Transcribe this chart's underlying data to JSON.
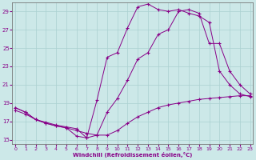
{
  "xlabel": "Windchill (Refroidissement éolien,°C)",
  "xlim": [
    0,
    23
  ],
  "ylim": [
    14.5,
    30
  ],
  "xticks": [
    0,
    1,
    2,
    3,
    4,
    5,
    6,
    7,
    8,
    9,
    10,
    11,
    12,
    13,
    14,
    15,
    16,
    17,
    18,
    19,
    20,
    21,
    22,
    23
  ],
  "yticks": [
    15,
    17,
    19,
    21,
    23,
    25,
    27,
    29
  ],
  "background_color": "#cce8e8",
  "line_color": "#880088",
  "grid_color": "#aad0d0",
  "line1_x": [
    0,
    1,
    2,
    3,
    4,
    5,
    6,
    7,
    8,
    9,
    10,
    11,
    12,
    13,
    14,
    15,
    16,
    17,
    18,
    19,
    20,
    21,
    22,
    23
  ],
  "line1_y": [
    18.5,
    18.0,
    17.2,
    16.8,
    16.5,
    16.3,
    15.4,
    15.2,
    19.3,
    24.0,
    24.5,
    27.2,
    29.5,
    29.8,
    29.2,
    29.0,
    29.2,
    28.8,
    28.5,
    27.8,
    22.5,
    21.0,
    20.0,
    19.7
  ],
  "line2_x": [
    0,
    1,
    2,
    3,
    4,
    5,
    6,
    7,
    8,
    9,
    10,
    11,
    12,
    13,
    14,
    15,
    16,
    17,
    18,
    19,
    20,
    21,
    22,
    23
  ],
  "line2_y": [
    18.5,
    18.0,
    17.2,
    16.9,
    16.6,
    16.4,
    16.2,
    15.2,
    15.5,
    18.0,
    19.5,
    21.5,
    23.8,
    24.5,
    26.5,
    27.0,
    29.0,
    29.2,
    28.8,
    25.5,
    25.5,
    22.5,
    21.0,
    20.0
  ],
  "line3_x": [
    0,
    1,
    2,
    3,
    4,
    5,
    6,
    7,
    8,
    9,
    10,
    11,
    12,
    13,
    14,
    15,
    16,
    17,
    18,
    19,
    20,
    21,
    22,
    23
  ],
  "line3_y": [
    18.2,
    17.8,
    17.2,
    16.8,
    16.5,
    16.3,
    16.0,
    15.7,
    15.5,
    15.5,
    16.0,
    16.8,
    17.5,
    18.0,
    18.5,
    18.8,
    19.0,
    19.2,
    19.4,
    19.5,
    19.6,
    19.7,
    19.8,
    19.8
  ]
}
